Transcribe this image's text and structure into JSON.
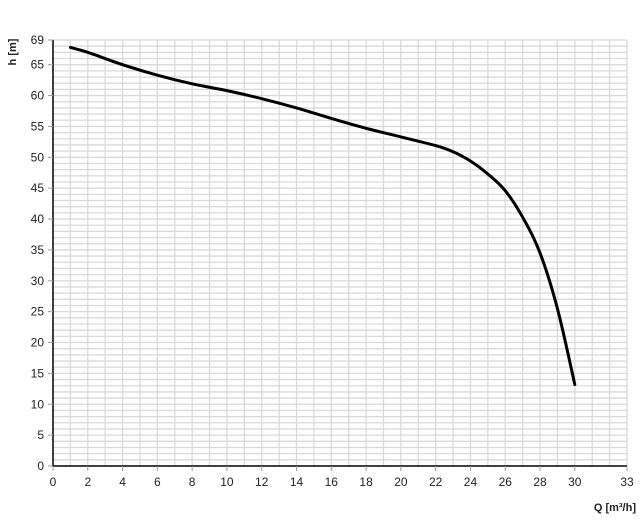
{
  "chart_data": {
    "type": "line",
    "title": "",
    "xlabel": "Q [m³/h]",
    "ylabel": "h [m]",
    "xlim": [
      0,
      33
    ],
    "ylim": [
      0,
      69
    ],
    "x_ticks": [
      0,
      2,
      4,
      6,
      8,
      10,
      12,
      14,
      16,
      18,
      20,
      22,
      24,
      26,
      28,
      30,
      33
    ],
    "y_ticks": [
      0,
      5,
      10,
      15,
      20,
      25,
      30,
      35,
      40,
      45,
      50,
      55,
      60,
      65,
      69
    ],
    "grid": true,
    "grid_minor_step": {
      "x": 1,
      "y": 1
    },
    "colors": {
      "curve": "#000000",
      "grid": "#d9d9d9",
      "axis": "#000000"
    },
    "series": [
      {
        "x": [
          1,
          2,
          4,
          6,
          8,
          10,
          12,
          14,
          16,
          18,
          20,
          22,
          23,
          24,
          25,
          26,
          27,
          28,
          29,
          30
        ],
        "y": [
          67.8,
          67.0,
          65.0,
          63.3,
          61.9,
          60.8,
          59.5,
          58.0,
          56.3,
          54.7,
          53.3,
          51.9,
          50.9,
          49.4,
          47.3,
          44.6,
          40.3,
          34.5,
          25.5,
          13.2
        ]
      }
    ]
  }
}
